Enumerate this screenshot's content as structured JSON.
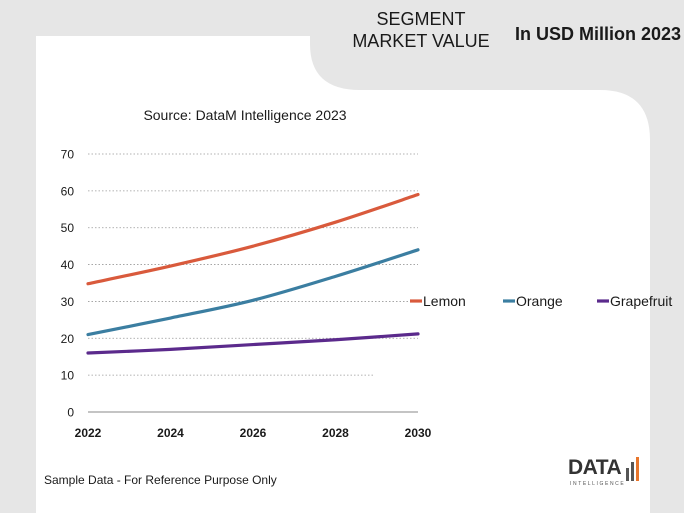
{
  "header": {
    "segment_title": "SEGMENT MARKET VALUE",
    "unit_title": "In USD Million 2023"
  },
  "footer": {
    "note": "Sample Data - For Reference Purpose Only"
  },
  "logo": {
    "word": "DATA",
    "subtitle": "INTELLIGENCE"
  },
  "colors": {
    "background_panel": "#ffffff",
    "background_outer": "#e6e6e6",
    "lemon": "#d95a3c",
    "orange": "#3b7ea1",
    "grapefruit": "#5b2a8c"
  },
  "chart_data": {
    "type": "line",
    "title": "Source: DataM Intelligence  2023",
    "xlabel": "",
    "ylabel": "",
    "x": [
      2022,
      2024,
      2026,
      2028,
      2030
    ],
    "x_ticks": [
      "2022",
      "2024",
      "2026",
      "2028",
      "2030"
    ],
    "y_ticks": [
      "0",
      "10",
      "20",
      "30",
      "40",
      "50",
      "60",
      "70"
    ],
    "ylim": [
      0,
      70
    ],
    "grid": true,
    "legend_position": "right",
    "series": [
      {
        "name": "Lemon",
        "color": "#d95a3c",
        "values": [
          34.8,
          39.6,
          45.0,
          51.5,
          59.0
        ]
      },
      {
        "name": "Orange",
        "color": "#3b7ea1",
        "values": [
          21.0,
          25.5,
          30.3,
          36.8,
          44.0
        ]
      },
      {
        "name": "Grapefruit",
        "color": "#5b2a8c",
        "values": [
          16.0,
          17.0,
          18.3,
          19.6,
          21.2
        ]
      }
    ]
  }
}
